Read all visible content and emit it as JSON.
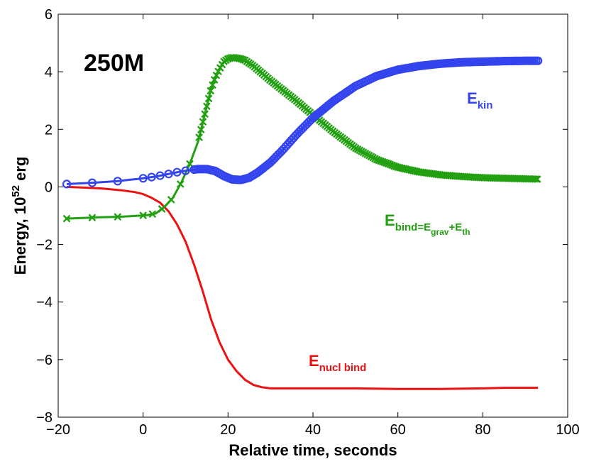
{
  "chart_data": {
    "type": "line",
    "title_annotation": "250M",
    "xlabel": "Relative time, seconds",
    "ylabel_prefix": "Energy, 10",
    "ylabel_exponent": "52",
    "ylabel_suffix": " erg",
    "xlim": [
      -20,
      100
    ],
    "ylim": [
      -8,
      6
    ],
    "xticks": [
      -20,
      0,
      20,
      40,
      60,
      80,
      100
    ],
    "yticks": [
      -8,
      -6,
      -4,
      -2,
      0,
      2,
      4,
      6
    ],
    "xtick_labels": [
      "−20",
      "0",
      "20",
      "40",
      "60",
      "80",
      "100"
    ],
    "ytick_labels": [
      "−8",
      "−6",
      "−4",
      "−2",
      "0",
      "2",
      "4",
      "6"
    ],
    "grid": false,
    "series": [
      {
        "name": "E_kin",
        "label_main": "E",
        "label_sub": "kin",
        "color": "#3344ee",
        "marker": "o",
        "x": [
          -18,
          -11,
          -6,
          -3,
          -1,
          1,
          3,
          5,
          7,
          9,
          11,
          13,
          15,
          17,
          19,
          21,
          23,
          25,
          27,
          30,
          33,
          36,
          40,
          45,
          50,
          55,
          60,
          65,
          70,
          75,
          80,
          85,
          90,
          93
        ],
        "y": [
          0.1,
          0.15,
          0.2,
          0.25,
          0.28,
          0.32,
          0.36,
          0.42,
          0.48,
          0.54,
          0.58,
          0.62,
          0.62,
          0.55,
          0.38,
          0.26,
          0.24,
          0.32,
          0.5,
          0.85,
          1.3,
          1.8,
          2.4,
          3.0,
          3.5,
          3.85,
          4.07,
          4.2,
          4.28,
          4.33,
          4.35,
          4.37,
          4.38,
          4.38
        ]
      },
      {
        "name": "E_bind",
        "label_main": "E",
        "label_sub": "bind=E",
        "label_sub2": "grav",
        "label_mid": "+E",
        "label_sub3": "th",
        "color": "#22a012",
        "marker": "x",
        "x": [
          -18,
          -11,
          -6,
          -3,
          -1,
          1,
          3,
          5,
          7,
          9,
          11,
          13,
          14,
          15,
          16,
          17,
          18,
          19,
          20,
          21,
          22,
          23,
          24,
          26,
          28,
          30,
          33,
          36,
          40,
          45,
          50,
          55,
          60,
          65,
          70,
          75,
          80,
          85,
          90,
          93
        ],
        "y": [
          -1.1,
          -1.06,
          -1.04,
          -1.02,
          -1.0,
          -0.98,
          -0.92,
          -0.7,
          -0.38,
          0.15,
          0.8,
          1.6,
          2.2,
          2.8,
          3.4,
          3.8,
          4.1,
          4.35,
          4.45,
          4.5,
          4.48,
          4.45,
          4.4,
          4.2,
          3.95,
          3.7,
          3.35,
          3.0,
          2.5,
          1.9,
          1.35,
          0.95,
          0.68,
          0.52,
          0.42,
          0.36,
          0.32,
          0.3,
          0.28,
          0.27
        ]
      },
      {
        "name": "E_nucl_bind",
        "label_main": "E",
        "label_sub": "nucl bind",
        "color": "#ee1111",
        "marker": "none",
        "x": [
          -18,
          -10,
          -5,
          -2,
          0,
          2,
          4,
          6,
          8,
          10,
          12,
          14,
          16,
          18,
          20,
          22,
          24,
          26,
          28,
          30,
          35,
          40,
          50,
          60,
          70,
          80,
          85,
          93
        ],
        "y": [
          0.0,
          -0.05,
          -0.12,
          -0.18,
          -0.25,
          -0.38,
          -0.55,
          -0.85,
          -1.3,
          -1.9,
          -2.7,
          -3.6,
          -4.6,
          -5.4,
          -6.0,
          -6.4,
          -6.7,
          -6.88,
          -6.96,
          -7.0,
          -7.0,
          -7.0,
          -7.0,
          -7.02,
          -7.02,
          -7.0,
          -6.98,
          -6.98
        ]
      }
    ]
  }
}
